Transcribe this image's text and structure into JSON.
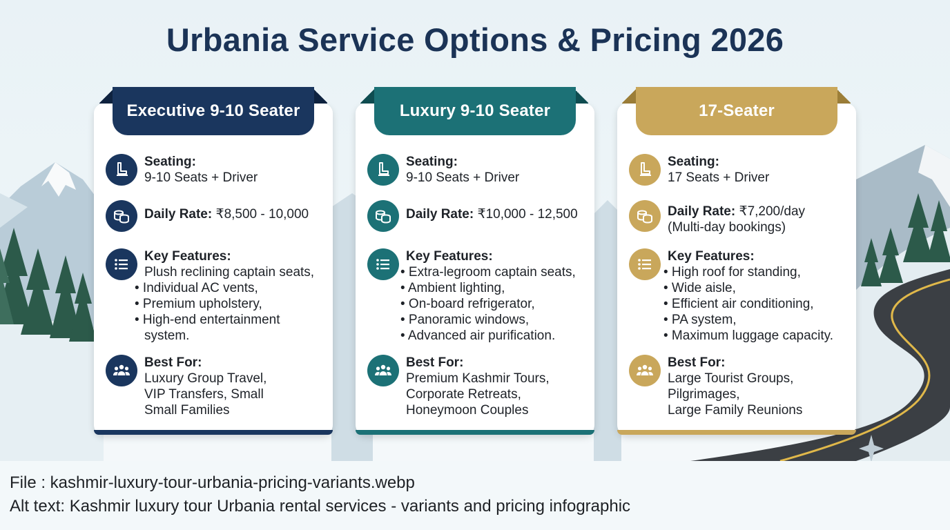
{
  "title": "Urbania Service Options & Pricing 2026",
  "colors": {
    "navy": "#1a365e",
    "teal": "#1c7176",
    "gold": "#c9a75b",
    "title": "#1b3356"
  },
  "cards": [
    {
      "name": "Executive 9-10 Seater",
      "seating_label": "Seating:",
      "seating_value": "9-10 Seats + Driver",
      "rate_label": "Daily Rate:",
      "rate_value": "₹8,500 - 10,000",
      "rate_note": "",
      "features_label": "Key Features:",
      "features": [
        "Plush reclining captain seats,",
        "• Individual AC vents,",
        "• Premium upholstery,",
        "• High-end entertainment",
        "system."
      ],
      "best_label": "Best For:",
      "best": [
        "Luxury Group Travel,",
        "VIP Transfers, Small",
        "Small Families"
      ]
    },
    {
      "name": "Luxury 9-10 Seater",
      "seating_label": "Seating:",
      "seating_value": "9-10 Seats + Driver",
      "rate_label": "Daily Rate:",
      "rate_value": "₹10,000 - 12,500",
      "rate_note": "",
      "features_label": "Key Features:",
      "features": [
        "• Extra-legroom captain seats,",
        "• Ambient lighting,",
        "• On-board refrigerator,",
        "• Panoramic windows,",
        "• Advanced air purification."
      ],
      "best_label": "Best For:",
      "best": [
        "Premium Kashmir Tours,",
        "Corporate Retreats,",
        "Honeymoon Couples"
      ]
    },
    {
      "name": "17-Seater",
      "seating_label": "Seating:",
      "seating_value": "17 Seats + Driver",
      "rate_label": "Daily Rate:",
      "rate_value": "₹7,200/day",
      "rate_note": "(Multi-day bookings)",
      "features_label": "Key Features:",
      "features": [
        "• High roof for standing,",
        "• Wide aisle,",
        "• Efficient air conditioning,",
        "• PA system,",
        "• Maximum luggage capacity."
      ],
      "best_label": "Best For:",
      "best": [
        "Large Tourist Groups,",
        "Pilgrimages,",
        "Large Family Reunions"
      ]
    }
  ],
  "icons": [
    "seat-icon",
    "coins-icon",
    "list-icon",
    "group-icon"
  ],
  "footer": {
    "file": "File :  kashmir-luxury-tour-urbania-pricing-variants.webp",
    "alt": "Alt text: Kashmir luxury tour Urbania rental services - variants and pricing infographic"
  }
}
